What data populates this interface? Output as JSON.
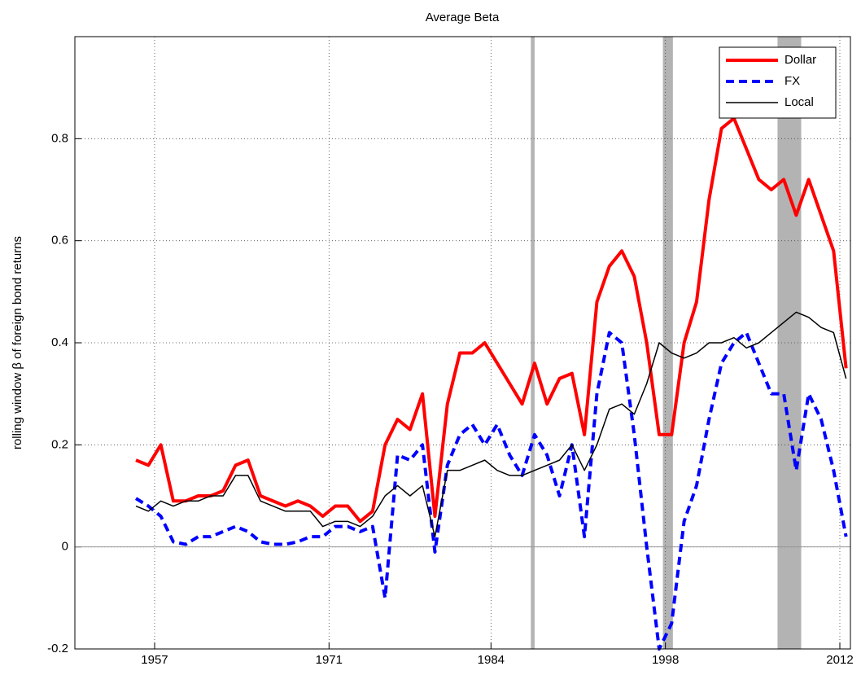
{
  "chart_data": {
    "type": "line",
    "title": "Average Beta",
    "y_label": "rolling window  β of foreign bond returns",
    "x": [
      1955.5,
      1956.5,
      1957.5,
      1958.5,
      1959.5,
      1960.5,
      1961.5,
      1962.5,
      1963.5,
      1964.5,
      1965.5,
      1966.5,
      1967.5,
      1968.5,
      1969.5,
      1970.5,
      1971.5,
      1972.5,
      1973.5,
      1974.5,
      1975.5,
      1976.5,
      1977.5,
      1978.5,
      1979.5,
      1980.5,
      1981.5,
      1982.5,
      1983.5,
      1984.5,
      1985.5,
      1986.5,
      1987.5,
      1988.5,
      1989.5,
      1990.5,
      1991.5,
      1992.5,
      1993.5,
      1994.5,
      1995.5,
      1996.5,
      1997.5,
      1998.5,
      1999.5,
      2000.5,
      2001.5,
      2002.5,
      2003.5,
      2004.5,
      2005.5,
      2006.5,
      2007.5,
      2008.5,
      2009.5,
      2010.5,
      2011.5,
      2012.5
    ],
    "series": [
      {
        "name": "Dollar",
        "color": "#ff0000",
        "style": "solid",
        "width": 4,
        "values": [
          0.17,
          0.16,
          0.2,
          0.09,
          0.09,
          0.1,
          0.1,
          0.11,
          0.16,
          0.17,
          0.1,
          0.09,
          0.08,
          0.09,
          0.08,
          0.06,
          0.08,
          0.08,
          0.05,
          0.07,
          0.2,
          0.25,
          0.23,
          0.3,
          0.06,
          0.28,
          0.38,
          0.38,
          0.4,
          0.36,
          0.32,
          0.28,
          0.36,
          0.28,
          0.33,
          0.34,
          0.22,
          0.48,
          0.55,
          0.58,
          0.53,
          0.4,
          0.22,
          0.22,
          0.4,
          0.48,
          0.68,
          0.82,
          0.84,
          0.78,
          0.72,
          0.7,
          0.72,
          0.65,
          0.72,
          0.65,
          0.58,
          0.35
        ]
      },
      {
        "name": "FX",
        "color": "#0000ff",
        "style": "dashed",
        "width": 4,
        "values": [
          0.095,
          0.08,
          0.06,
          0.01,
          0.005,
          0.02,
          0.02,
          0.03,
          0.04,
          0.03,
          0.01,
          0.005,
          0.005,
          0.01,
          0.02,
          0.02,
          0.04,
          0.04,
          0.03,
          0.04,
          -0.1,
          0.18,
          0.17,
          0.2,
          -0.01,
          0.16,
          0.22,
          0.24,
          0.2,
          0.24,
          0.18,
          0.14,
          0.22,
          0.18,
          0.1,
          0.2,
          0.02,
          0.3,
          0.42,
          0.4,
          0.22,
          0.0,
          -0.2,
          -0.15,
          0.05,
          0.12,
          0.25,
          0.36,
          0.4,
          0.42,
          0.36,
          0.3,
          0.3,
          0.15,
          0.3,
          0.25,
          0.15,
          0.02
        ]
      },
      {
        "name": "Local",
        "color": "#000000",
        "style": "solid",
        "width": 1.5,
        "values": [
          0.08,
          0.07,
          0.09,
          0.08,
          0.09,
          0.09,
          0.1,
          0.1,
          0.14,
          0.14,
          0.09,
          0.08,
          0.07,
          0.07,
          0.07,
          0.04,
          0.05,
          0.05,
          0.04,
          0.06,
          0.1,
          0.12,
          0.1,
          0.12,
          0.02,
          0.15,
          0.15,
          0.16,
          0.17,
          0.15,
          0.14,
          0.14,
          0.15,
          0.16,
          0.17,
          0.2,
          0.15,
          0.2,
          0.27,
          0.28,
          0.26,
          0.32,
          0.4,
          0.38,
          0.37,
          0.38,
          0.4,
          0.4,
          0.41,
          0.39,
          0.4,
          0.42,
          0.44,
          0.46,
          0.45,
          0.43,
          0.42,
          0.33
        ]
      }
    ],
    "shaded_periods": [
      [
        1987.2,
        1987.5
      ],
      [
        1997.8,
        1998.6
      ],
      [
        2007.0,
        2008.9
      ]
    ],
    "shade_color": "#b3b3b3",
    "xlim": [
      1950.6,
      2012.85
    ],
    "xticks": [
      1957,
      1971,
      1984,
      1998,
      2012
    ],
    "ylim": [
      -0.2,
      1.0
    ],
    "yticks": [
      -0.2,
      0,
      0.2,
      0.4,
      0.6,
      0.8
    ],
    "grid": true,
    "legend": "top-right"
  }
}
